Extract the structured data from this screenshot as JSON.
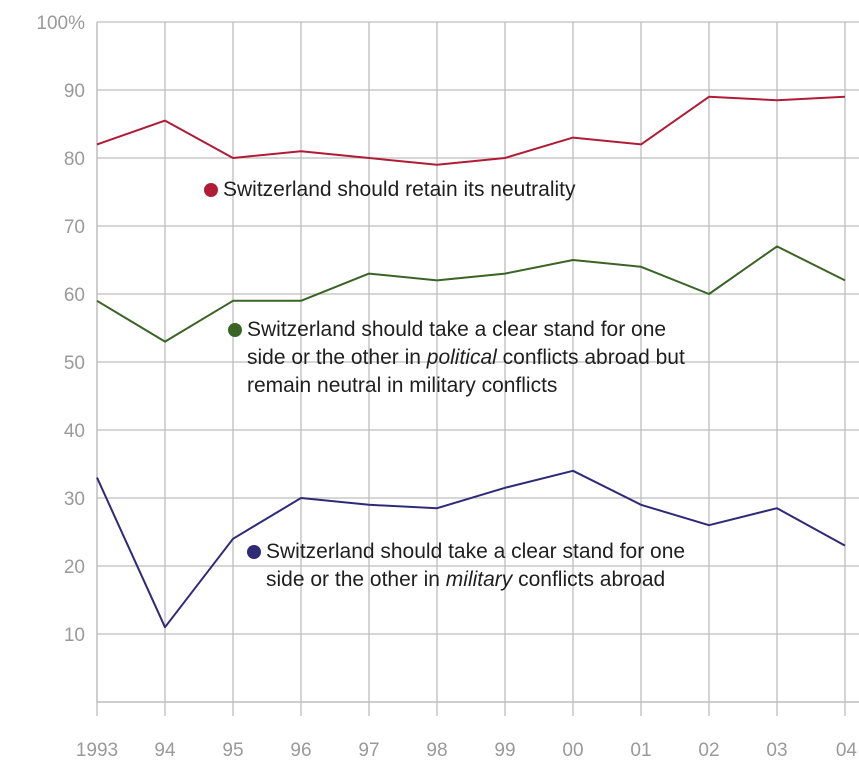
{
  "chart_data": {
    "type": "line",
    "title": "",
    "xlabel": "",
    "ylabel": "",
    "x": [
      "1993",
      "94",
      "95",
      "96",
      "97",
      "98",
      "99",
      "00",
      "01",
      "02",
      "03",
      "04"
    ],
    "ylim": [
      0,
      100
    ],
    "y_ticks": [
      10,
      20,
      30,
      40,
      50,
      60,
      70,
      80,
      90,
      100
    ],
    "y_tick_labels": [
      "10",
      "20",
      "30",
      "40",
      "50",
      "60",
      "70",
      "80",
      "90",
      "100%"
    ],
    "grid": "vertical lines at each year and horizontal lines at each 10 units",
    "series": [
      {
        "name": "Switzerland should retain its neutrality",
        "color": "#b01c36",
        "values": [
          82,
          85.5,
          80,
          81,
          80,
          79,
          80,
          83,
          82,
          89,
          88.5,
          89
        ]
      },
      {
        "name": "Switzerland should take a clear stand for one side or the other in political conflicts abroad but remain neutral in military conflicts",
        "color": "#3a6326",
        "values": [
          59,
          53,
          59,
          59,
          63,
          62,
          63,
          65,
          64,
          60,
          67,
          62
        ]
      },
      {
        "name": "Switzerland should take a clear stand for one side or the other in military conflicts abroad",
        "color": "#2f2a78",
        "values": [
          33,
          11,
          24,
          30,
          29,
          28.5,
          31.5,
          34,
          29,
          26,
          28.5,
          23
        ]
      }
    ]
  },
  "legend": {
    "neutrality": {
      "line1": "Switzerland should retain its neutrality"
    },
    "political": {
      "line1": "Switzerland should take a clear stand for one",
      "line2_pre": "side or the other in ",
      "line2_em": "political",
      "line2_post": " conflicts abroad but",
      "line3": "remain neutral in military conflicts"
    },
    "military": {
      "line1": "Switzerland should take a clear stand for one",
      "line2_pre": "side or the other in ",
      "line2_em": "military",
      "line2_post": " conflicts abroad"
    }
  }
}
